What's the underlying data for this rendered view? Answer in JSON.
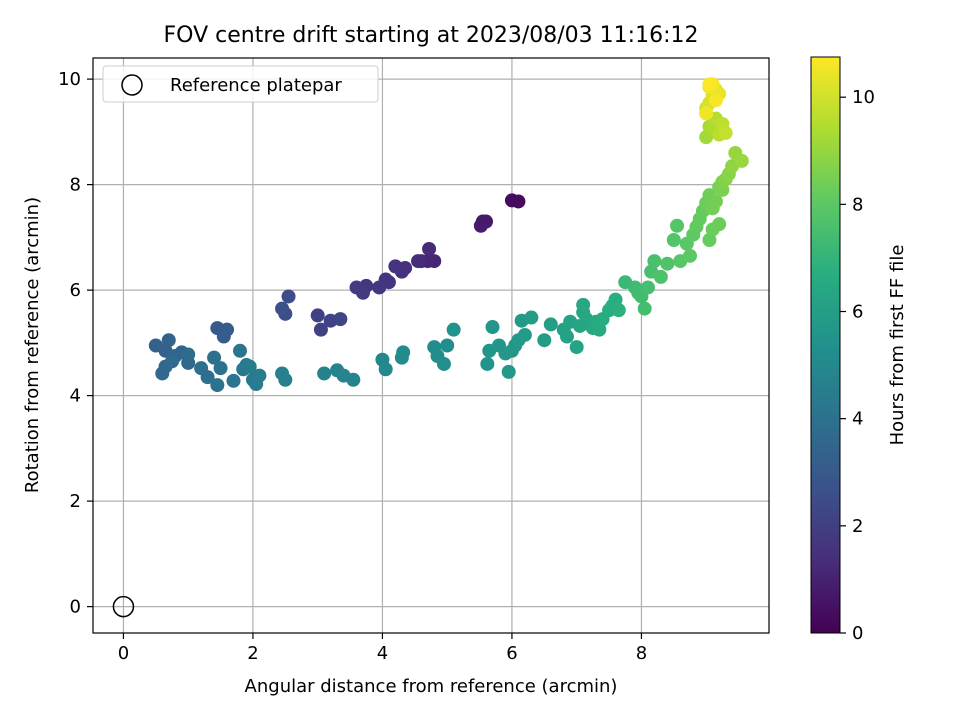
{
  "chart_data": {
    "type": "scatter",
    "title": "FOV centre drift starting at 2023/08/03 11:16:12",
    "xlabel": "Angular distance from reference (arcmin)",
    "ylabel": "Rotation from reference (arcmin)",
    "xlim": [
      -0.47,
      9.97
    ],
    "ylim": [
      -0.5,
      10.4
    ],
    "x_ticks": [
      0,
      2,
      4,
      6,
      8
    ],
    "y_ticks": [
      0,
      2,
      4,
      6,
      8,
      10
    ],
    "grid": true,
    "legend": {
      "placement": "top-left",
      "entries": [
        "Reference platepar"
      ]
    },
    "reference_point": {
      "x": 0,
      "y": 0
    },
    "colorbar": {
      "label": "Hours from first FF file",
      "colormap": "viridis",
      "range": [
        0,
        10.75
      ],
      "ticks": [
        0,
        2,
        4,
        6,
        8,
        10
      ]
    },
    "series": [
      {
        "marker": "circle-filled",
        "x": [
          6.0,
          6.1,
          5.55,
          5.6,
          5.52,
          4.7,
          4.8,
          4.6,
          4.72,
          4.55,
          4.35,
          4.3,
          4.2,
          4.05,
          4.1,
          3.95,
          3.75,
          3.6,
          3.7,
          3.0,
          3.05,
          3.2,
          3.35,
          2.55,
          2.5,
          2.45,
          1.45,
          1.55,
          1.6,
          0.5,
          0.65,
          0.7,
          0.8,
          0.9,
          1.0,
          0.6,
          0.65,
          0.75,
          1.0,
          1.2,
          1.3,
          1.4,
          1.45,
          1.5,
          1.8,
          1.7,
          1.85,
          1.9,
          2.0,
          2.05,
          2.1,
          1.95,
          2.5,
          2.45,
          3.1,
          3.3,
          3.4,
          3.55,
          4.0,
          4.05,
          4.3,
          4.32,
          4.8,
          4.85,
          4.95,
          5.0,
          5.1,
          5.62,
          5.65,
          5.7,
          5.8,
          5.9,
          5.95,
          6.0,
          6.05,
          6.1,
          6.15,
          6.2,
          6.3,
          6.5,
          6.6,
          6.8,
          6.85,
          6.9,
          7.0,
          7.05,
          7.1,
          7.15,
          7.2,
          7.25,
          7.3,
          7.35,
          7.4,
          7.5,
          7.55,
          7.6,
          7.65,
          7.1,
          7.75,
          7.9,
          7.95,
          8.0,
          8.05,
          8.1,
          8.15,
          8.2,
          8.3,
          8.4,
          8.5,
          8.55,
          8.6,
          8.7,
          8.75,
          8.8,
          8.85,
          8.9,
          8.95,
          9.0,
          9.05,
          9.1,
          9.15,
          9.2,
          9.25,
          9.05,
          9.1,
          9.2,
          9.25,
          9.3,
          9.35,
          9.4,
          9.45,
          9.55,
          9.0,
          9.05,
          9.1,
          9.15,
          9.2,
          9.25,
          9.3,
          9.0,
          9.05,
          9.1,
          9.15,
          9.2,
          9.05,
          9.1,
          9.15,
          9.0,
          9.05
        ],
        "y": [
          7.7,
          7.68,
          7.3,
          7.3,
          7.22,
          6.55,
          6.55,
          6.55,
          6.78,
          6.55,
          6.42,
          6.35,
          6.45,
          6.2,
          6.15,
          6.05,
          6.08,
          6.05,
          5.95,
          5.52,
          5.25,
          5.42,
          5.45,
          5.88,
          5.55,
          5.65,
          5.28,
          5.12,
          5.25,
          4.95,
          4.85,
          5.05,
          4.75,
          4.82,
          4.62,
          4.42,
          4.55,
          4.65,
          4.78,
          4.52,
          4.35,
          4.72,
          4.2,
          4.52,
          4.85,
          4.28,
          4.5,
          4.58,
          4.3,
          4.22,
          4.38,
          4.55,
          4.3,
          4.42,
          4.42,
          4.48,
          4.38,
          4.3,
          4.68,
          4.5,
          4.72,
          4.82,
          4.92,
          4.75,
          4.6,
          4.95,
          5.25,
          4.6,
          4.85,
          5.3,
          4.95,
          4.8,
          4.45,
          4.85,
          4.95,
          5.05,
          5.42,
          5.15,
          5.48,
          5.05,
          5.35,
          5.25,
          5.12,
          5.4,
          4.92,
          5.32,
          5.58,
          5.45,
          5.35,
          5.28,
          5.4,
          5.25,
          5.45,
          5.62,
          5.7,
          5.82,
          5.62,
          5.72,
          6.15,
          6.05,
          5.95,
          5.88,
          5.65,
          6.05,
          6.35,
          6.55,
          6.25,
          6.5,
          6.95,
          7.22,
          6.55,
          6.88,
          6.65,
          7.05,
          7.2,
          7.35,
          7.5,
          7.65,
          7.8,
          7.55,
          7.68,
          7.95,
          8.05,
          6.95,
          7.15,
          7.25,
          7.9,
          8.1,
          8.2,
          8.35,
          8.6,
          8.45,
          8.9,
          9.1,
          9.05,
          9.25,
          8.95,
          9.15,
          8.98,
          9.45,
          9.55,
          9.7,
          9.8,
          9.72,
          9.85,
          9.9,
          9.6,
          9.35,
          9.9
        ],
        "hours": [
          0.3,
          0.3,
          0.7,
          0.75,
          0.8,
          1.1,
          1.15,
          1.2,
          1.25,
          1.3,
          1.45,
          1.5,
          1.55,
          1.6,
          1.65,
          1.7,
          1.75,
          1.8,
          1.85,
          2.05,
          2.1,
          2.15,
          2.2,
          2.5,
          2.55,
          2.6,
          3.0,
          3.05,
          3.1,
          3.3,
          3.35,
          3.4,
          3.45,
          3.5,
          3.55,
          3.6,
          3.65,
          3.7,
          3.75,
          3.85,
          3.9,
          3.95,
          4.0,
          4.05,
          4.15,
          4.2,
          4.25,
          4.3,
          4.35,
          4.4,
          4.45,
          4.5,
          4.6,
          4.62,
          4.7,
          4.75,
          4.8,
          4.85,
          4.95,
          5.0,
          5.05,
          5.1,
          5.2,
          5.25,
          5.3,
          5.35,
          5.4,
          5.5,
          5.55,
          5.6,
          5.62,
          5.65,
          5.68,
          5.7,
          5.72,
          5.75,
          5.8,
          5.85,
          5.9,
          5.95,
          6.0,
          6.05,
          6.1,
          6.15,
          6.2,
          6.25,
          6.3,
          6.35,
          6.4,
          6.45,
          6.5,
          6.55,
          6.6,
          6.65,
          6.7,
          6.75,
          6.8,
          6.45,
          7.2,
          7.3,
          7.35,
          7.4,
          7.45,
          7.5,
          7.55,
          7.6,
          7.65,
          7.7,
          7.8,
          7.85,
          7.9,
          7.95,
          8.0,
          8.05,
          8.1,
          8.15,
          8.2,
          8.3,
          8.35,
          8.4,
          8.45,
          8.5,
          8.55,
          8.2,
          8.25,
          8.3,
          8.6,
          8.7,
          8.8,
          8.9,
          9.0,
          9.05,
          9.2,
          9.3,
          9.4,
          9.5,
          9.6,
          9.7,
          9.8,
          10.0,
          10.1,
          10.2,
          10.3,
          10.4,
          10.5,
          10.6,
          10.65,
          10.55,
          10.7
        ]
      }
    ]
  }
}
